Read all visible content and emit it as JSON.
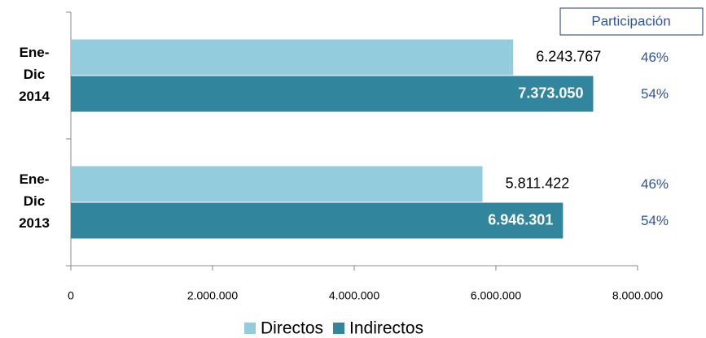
{
  "chart_data": {
    "type": "hbar",
    "categories": [
      "Ene-Dic 2014",
      "Ene-Dic 2013"
    ],
    "series": [
      {
        "name": "Directos",
        "color": "#93cddd",
        "values": [
          6243767,
          5811422
        ],
        "value_labels": [
          "6.243.767",
          "5.811.422"
        ],
        "share_labels": [
          "46%",
          "46%"
        ]
      },
      {
        "name": "Indirectos",
        "color": "#31859c",
        "values": [
          7373050,
          6946301
        ],
        "value_labels": [
          "7.373.050",
          "6.946.301"
        ],
        "share_labels": [
          "54%",
          "54%"
        ]
      }
    ],
    "share_title": "Participación",
    "xlim": [
      0,
      8000000
    ],
    "xticks": [
      0,
      {
        "value": 2000000,
        "label": "2.000.000"
      },
      {
        "value": 4000000,
        "label": "4.000.000"
      },
      {
        "value": 6000000,
        "label": "6.000.000"
      },
      {
        "value": 8000000,
        "label": "8.000.000"
      }
    ],
    "legend": "bottom"
  }
}
